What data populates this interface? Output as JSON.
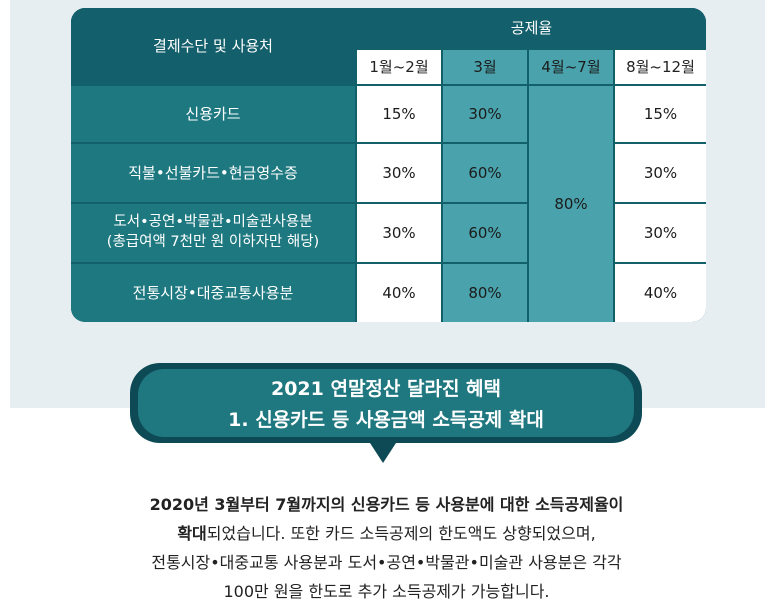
{
  "table": {
    "header_label": "결제수단 및 사용처",
    "header_group": "공제율",
    "periods": [
      "1월~2월",
      "3월",
      "4월~7월",
      "8월~12월"
    ],
    "rows": [
      {
        "label": "신용카드",
        "jan_feb": "15%",
        "mar": "30%",
        "aug_dec": "15%"
      },
      {
        "label": "직불•선불카드•현금영수증",
        "jan_feb": "30%",
        "mar": "60%",
        "aug_dec": "30%"
      },
      {
        "label_line1": "도서•공연•박물관•미술관사용분",
        "label_line2": "(총급여액 7천만 원 이하자만 해당)",
        "jan_feb": "30%",
        "mar": "60%",
        "aug_dec": "30%"
      },
      {
        "label": "전통시장•대중교통사용분",
        "jan_feb": "40%",
        "mar": "80%",
        "aug_dec": "40%"
      }
    ],
    "apr_jul_value": "80%"
  },
  "bubble": {
    "line1": "2021 연말정산 달라진 혜택",
    "line2": "1. 신용카드 등 사용금액 소득공제 확대"
  },
  "body": {
    "line1_bold": "2020년 3월부터 7월까지의 신용카드 등 사용분에 대한 소득공제율이",
    "line2_bold": "확대",
    "line2_rest": "되었습니다. 또한 카드 소득공제의 한도액도 상향되었으며,",
    "line3": "전통시장•대중교통 사용분과 도서•공연•박물관•미술관 사용분은 각각",
    "line4": "100만 원을 한도로 추가 소득공제가 가능합니다."
  }
}
